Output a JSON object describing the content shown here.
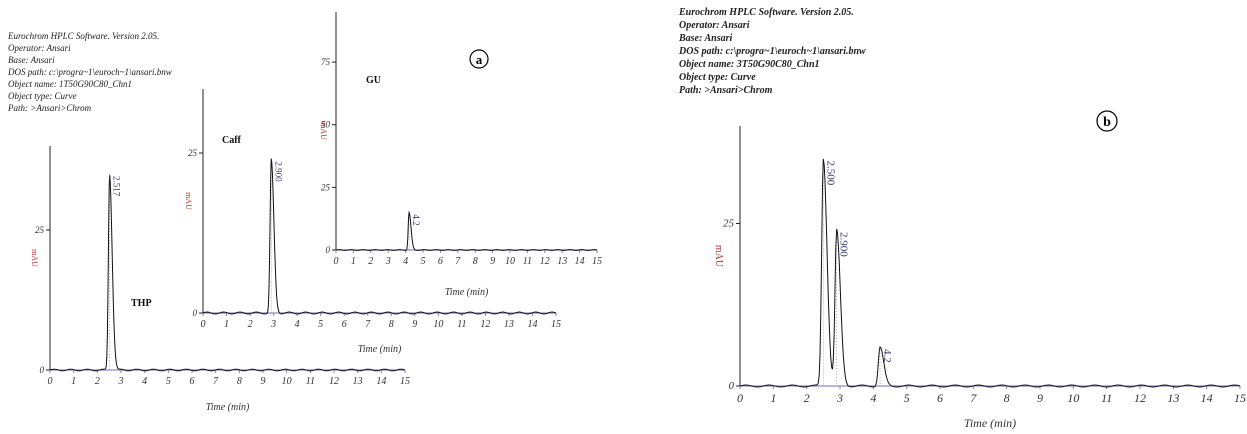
{
  "panels": {
    "a": {
      "letter": "a",
      "header": [
        "Eurochrom HPLC Software. Version 2.05.",
        "Operator: Ansari",
        "Base: Ansari",
        "DOS path: c:\\progra~1\\euroch~1\\ansari.bnw",
        "Object name: 1T50G90C80_Chn1",
        "Object type: Curve",
        "Path: >Ansari>Chrom"
      ]
    },
    "b": {
      "letter": "b",
      "header": [
        "Eurochrom HPLC Software. Version 2.05.",
        "Operator: Ansari",
        "Base: Ansari",
        "DOS path: c:\\progra~1\\euroch~1\\ansari.bnw",
        "Object name: 3T50G90C80_Chn1",
        "Object type: Curve",
        "Path: >Ansari>Chrom"
      ]
    }
  },
  "colors": {
    "trace": "#111111",
    "baseline": "#8a8acc",
    "mau": "#c03030",
    "peak_label": "#3a3a7a"
  },
  "chart_data": [
    {
      "id": "a-thp",
      "type": "line",
      "compound": "THP",
      "xlabel": "Time (min)",
      "ylabel": "mAU",
      "xticks": [
        0,
        1,
        2,
        3,
        4,
        5,
        6,
        7,
        8,
        9,
        10,
        11,
        12,
        13,
        14,
        15
      ],
      "yticks": [
        0,
        25
      ],
      "xlim": [
        0,
        15
      ],
      "ylim": [
        0,
        40
      ],
      "peaks": [
        {
          "label": "2.517",
          "rt": 2.517,
          "height": 35
        }
      ]
    },
    {
      "id": "a-caff",
      "type": "line",
      "compound": "Caff",
      "xlabel": "Time (min)",
      "ylabel": "mAU",
      "xticks": [
        0,
        1,
        2,
        3,
        4,
        5,
        6,
        7,
        8,
        9,
        10,
        11,
        12,
        13,
        14,
        15
      ],
      "yticks": [
        0,
        25
      ],
      "xlim": [
        0,
        15
      ],
      "ylim": [
        0,
        35
      ],
      "peaks": [
        {
          "label": "2.900",
          "rt": 2.9,
          "height": 24
        }
      ]
    },
    {
      "id": "a-gu",
      "type": "line",
      "compound": "GU",
      "xlabel": "Time (min)",
      "ylabel": "mAU",
      "xticks": [
        0,
        1,
        2,
        3,
        4,
        5,
        6,
        7,
        8,
        9,
        10,
        11,
        12,
        13,
        14,
        15
      ],
      "yticks": [
        0,
        25,
        50,
        75
      ],
      "xlim": [
        0,
        15
      ],
      "ylim": [
        0,
        95
      ],
      "peaks": [
        {
          "label": "4.2",
          "rt": 4.2,
          "height": 15
        }
      ]
    },
    {
      "id": "b-mix",
      "type": "line",
      "xlabel": "Time (min)",
      "ylabel": "mAU",
      "xticks": [
        0,
        1,
        2,
        3,
        4,
        5,
        6,
        7,
        8,
        9,
        10,
        11,
        12,
        13,
        14,
        15
      ],
      "yticks": [
        0,
        25
      ],
      "xlim": [
        0,
        15
      ],
      "ylim": [
        0,
        40
      ],
      "peaks": [
        {
          "label": "2.500",
          "rt": 2.5,
          "height": 35
        },
        {
          "label": "2.900",
          "rt": 2.9,
          "height": 24
        },
        {
          "label": "4.2",
          "rt": 4.2,
          "height": 6
        }
      ]
    }
  ]
}
